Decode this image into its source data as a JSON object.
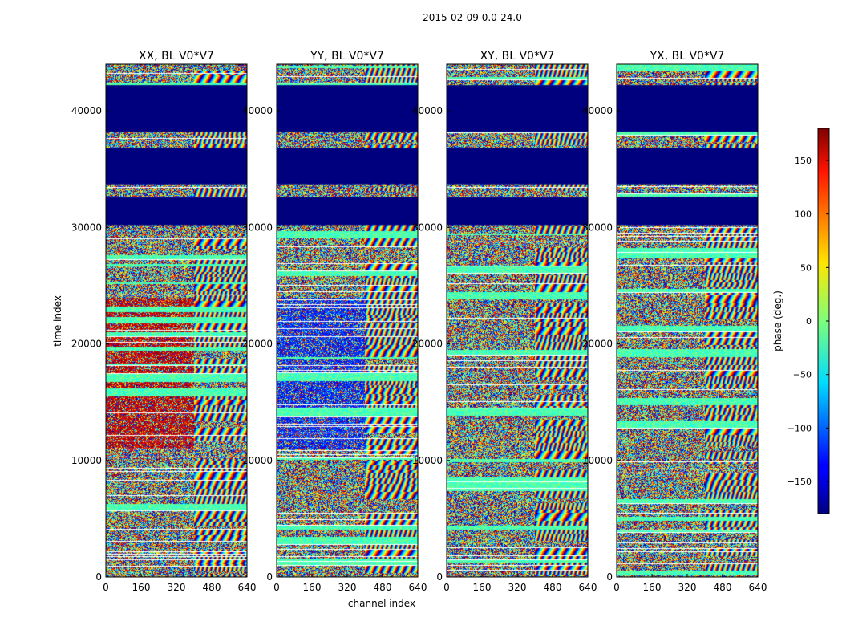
{
  "figure": {
    "suptitle": "2015-02-09 0.0-24.0"
  },
  "chart_data": {
    "type": "heatmap",
    "xlabel": "channel index",
    "ylabel": "time index",
    "xlim": [
      0,
      640
    ],
    "ylim": [
      0,
      44000
    ],
    "x_ticks": [
      0,
      160,
      320,
      480,
      640
    ],
    "y_ticks": [
      0,
      10000,
      20000,
      30000,
      40000
    ],
    "panels": [
      {
        "title": "XX, BL V0*V7"
      },
      {
        "title": "YY, BL V0*V7"
      },
      {
        "title": "XY, BL V0*V7"
      },
      {
        "title": "YX, BL V0*V7"
      }
    ],
    "colorbar": {
      "label": "phase (deg.)",
      "range": [
        -180,
        180
      ],
      "ticks": [
        -150,
        -100,
        -50,
        0,
        50,
        100,
        150
      ],
      "colormap": "jet"
    },
    "flagged_time_ranges": [
      [
        30200,
        32600
      ],
      [
        33700,
        36800
      ],
      [
        38200,
        42200
      ]
    ]
  }
}
